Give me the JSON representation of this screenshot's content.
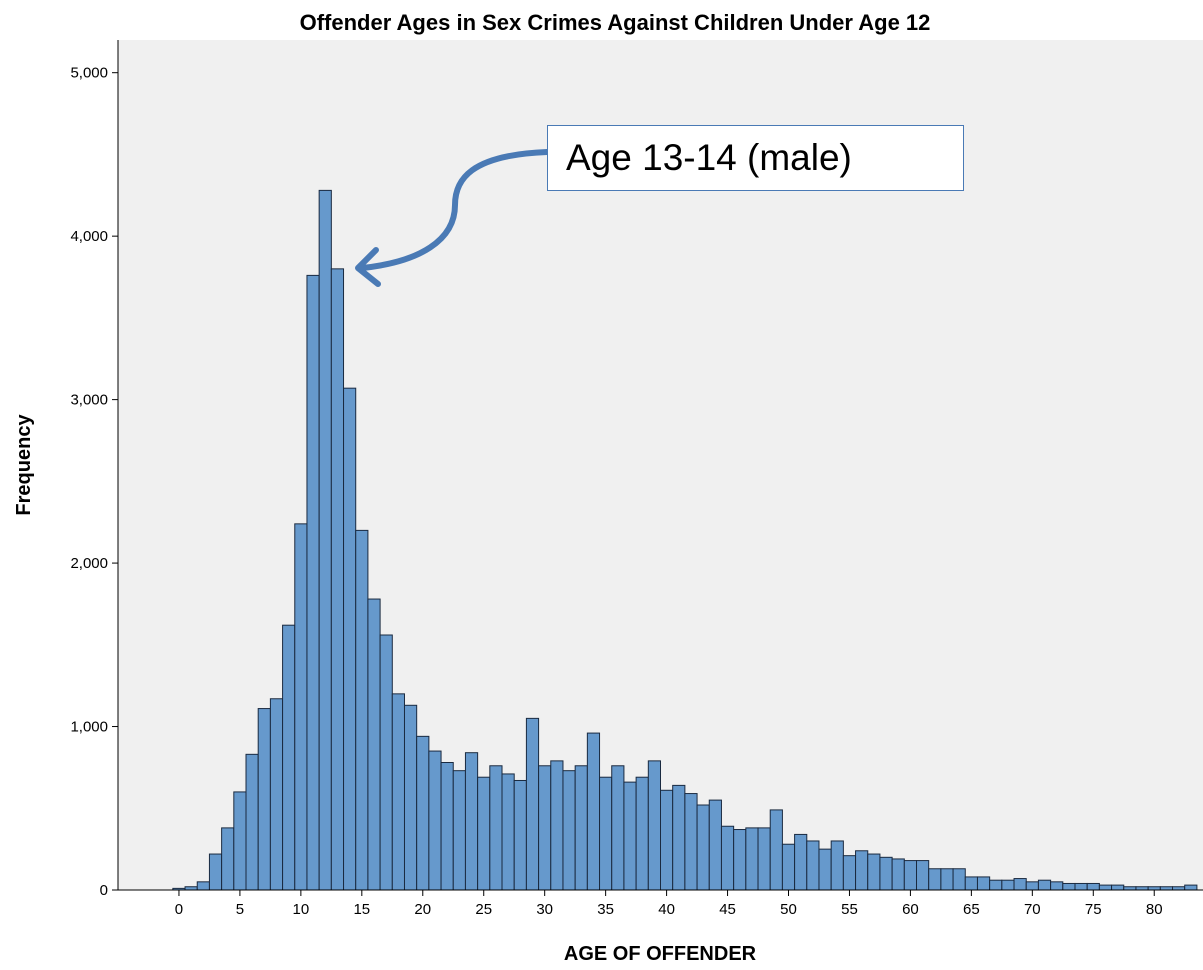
{
  "colors": {
    "plot_bg": "#f0f0f0",
    "bar_fill": "#6699cc",
    "bar_stroke": "#1a2a40",
    "arrow": "#4a7ab5",
    "callout_border": "#4a7ab5"
  },
  "chart_data": {
    "type": "bar",
    "title": "Offender Ages in Sex Crimes Against Children Under Age 12",
    "xlabel": "AGE OF OFFENDER",
    "ylabel": "Frequency",
    "xlim": [
      -5,
      84
    ],
    "ylim": [
      0,
      5200
    ],
    "x_ticks": [
      0,
      5,
      10,
      15,
      20,
      25,
      30,
      35,
      40,
      45,
      50,
      55,
      60,
      65,
      70,
      75,
      80
    ],
    "y_ticks": [
      0,
      1000,
      2000,
      3000,
      4000,
      5000
    ],
    "y_tick_labels": [
      "0",
      "1,000",
      "2,000",
      "3,000",
      "4,000",
      "5,000"
    ],
    "grid": false,
    "x": [
      0,
      1,
      2,
      3,
      4,
      5,
      6,
      7,
      8,
      9,
      10,
      11,
      12,
      13,
      14,
      15,
      16,
      17,
      18,
      19,
      20,
      21,
      22,
      23,
      24,
      25,
      26,
      27,
      28,
      29,
      30,
      31,
      32,
      33,
      34,
      35,
      36,
      37,
      38,
      39,
      40,
      41,
      42,
      43,
      44,
      45,
      46,
      47,
      48,
      49,
      50,
      51,
      52,
      53,
      54,
      55,
      56,
      57,
      58,
      59,
      60,
      61,
      62,
      63,
      64,
      65,
      66,
      67,
      68,
      69,
      70,
      71,
      72,
      73,
      74,
      75,
      76,
      77,
      78,
      79,
      80,
      81,
      82,
      83
    ],
    "values": [
      10,
      20,
      50,
      220,
      380,
      600,
      830,
      1110,
      1170,
      1620,
      2240,
      3760,
      4280,
      3800,
      3070,
      2200,
      1780,
      1560,
      1200,
      1130,
      940,
      850,
      780,
      730,
      840,
      690,
      760,
      710,
      670,
      1050,
      760,
      790,
      730,
      760,
      960,
      690,
      760,
      660,
      690,
      790,
      610,
      640,
      590,
      520,
      550,
      390,
      370,
      380,
      380,
      490,
      280,
      340,
      300,
      250,
      300,
      210,
      240,
      220,
      200,
      190,
      180,
      180,
      130,
      130,
      130,
      80,
      80,
      60,
      60,
      70,
      50,
      60,
      50,
      40,
      40,
      40,
      30,
      30,
      20,
      20,
      20,
      20,
      20,
      30
    ]
  },
  "annotation": {
    "text": "Age 13-14 (male)"
  }
}
